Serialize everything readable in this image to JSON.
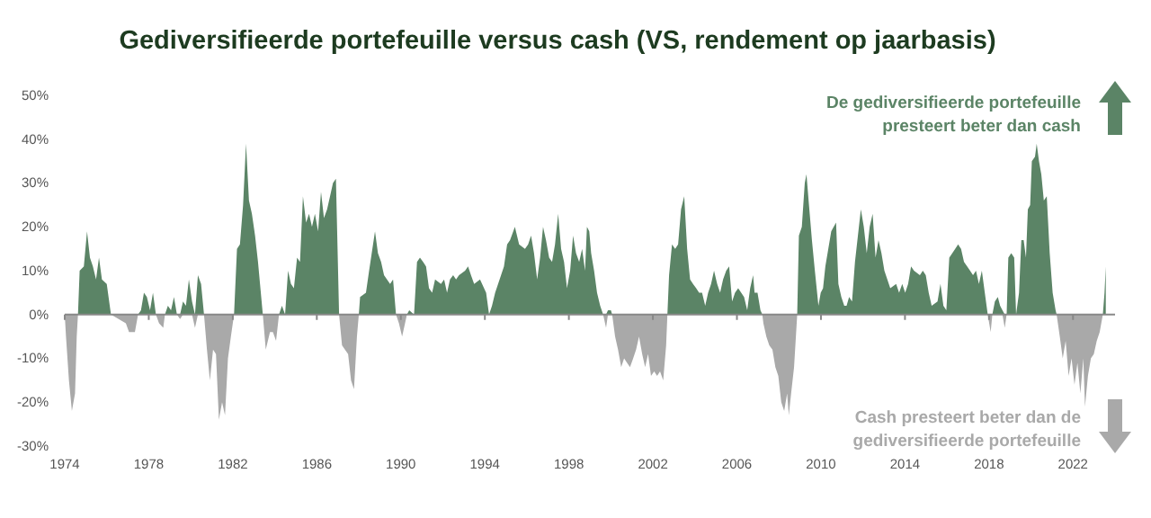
{
  "chart_data": {
    "type": "area",
    "title": "Gediversifieerde portefeuille versus cash (VS, rendement op jaarbasis)",
    "annotations": [
      "De gediversifieerde portefeuille presteert beter dan cash",
      "Cash presteert beter dan de gediversifieerde portefeuille"
    ],
    "x": [
      1974.0,
      1974.06,
      1974.2,
      1974.34,
      1974.49,
      1974.57,
      1974.63,
      1974.71,
      1974.91,
      1975.06,
      1975.2,
      1975.34,
      1975.49,
      1975.63,
      1975.77,
      1976.0,
      1976.2,
      1976.91,
      1977.06,
      1977.34,
      1977.49,
      1977.63,
      1977.77,
      1977.91,
      1978.06,
      1978.2,
      1978.34,
      1978.49,
      1978.69,
      1978.77,
      1978.91,
      1979.06,
      1979.2,
      1979.34,
      1979.49,
      1979.63,
      1979.77,
      1979.91,
      1980.06,
      1980.2,
      1980.34,
      1980.49,
      1980.63,
      1980.77,
      1980.91,
      1981.06,
      1981.2,
      1981.34,
      1981.49,
      1981.63,
      1981.77,
      1981.91,
      1982.06,
      1982.2,
      1982.34,
      1982.49,
      1982.63,
      1982.77,
      1982.91,
      1983.06,
      1983.2,
      1983.43,
      1983.57,
      1983.77,
      1983.91,
      1984.06,
      1984.2,
      1984.34,
      1984.49,
      1984.63,
      1984.77,
      1984.91,
      1985.06,
      1985.2,
      1985.34,
      1985.49,
      1985.63,
      1985.77,
      1985.91,
      1986.06,
      1986.2,
      1986.34,
      1986.49,
      1986.63,
      1986.77,
      1986.91,
      1987.06,
      1987.2,
      1987.34,
      1987.49,
      1987.63,
      1987.77,
      1987.91,
      1988.0,
      1988.06,
      1988.34,
      1988.49,
      1988.77,
      1988.91,
      1989.06,
      1989.2,
      1989.34,
      1989.49,
      1989.63,
      1989.77,
      1989.91,
      1990.06,
      1990.2,
      1990.29,
      1990.4,
      1990.63,
      1990.77,
      1990.91,
      1991.06,
      1991.2,
      1991.34,
      1991.49,
      1991.63,
      1991.91,
      1992.06,
      1992.2,
      1992.34,
      1992.49,
      1992.63,
      1992.77,
      1993.06,
      1993.2,
      1993.34,
      1993.49,
      1993.77,
      1994.06,
      1994.2,
      1994.34,
      1994.49,
      1994.63,
      1994.77,
      1994.91,
      1995.06,
      1995.2,
      1995.43,
      1995.63,
      1995.91,
      1996.06,
      1996.2,
      1996.34,
      1996.49,
      1996.63,
      1996.77,
      1996.91,
      1997.06,
      1997.2,
      1997.34,
      1997.49,
      1997.63,
      1997.77,
      1997.91,
      1998.06,
      1998.2,
      1998.34,
      1998.49,
      1998.63,
      1998.77,
      1998.86,
      1998.97,
      1999.06,
      1999.2,
      1999.34,
      1999.49,
      1999.63,
      1999.77,
      1999.86,
      2000.0,
      2000.06,
      2000.2,
      2000.34,
      2000.49,
      2000.63,
      2000.77,
      2000.91,
      2001.06,
      2001.2,
      2001.34,
      2001.49,
      2001.63,
      2001.77,
      2001.91,
      2002.06,
      2002.2,
      2002.34,
      2002.49,
      2002.63,
      2002.69,
      2002.77,
      2002.91,
      2003.06,
      2003.2,
      2003.34,
      2003.49,
      2003.63,
      2003.77,
      2003.91,
      2004.06,
      2004.2,
      2004.34,
      2004.49,
      2004.63,
      2004.77,
      2004.91,
      2005.06,
      2005.2,
      2005.34,
      2005.49,
      2005.63,
      2005.77,
      2005.91,
      2006.06,
      2006.34,
      2006.49,
      2006.63,
      2006.77,
      2006.84,
      2006.98,
      2007.12,
      2007.21,
      2007.26,
      2007.4,
      2007.54,
      2007.69,
      2007.83,
      2007.97,
      2008.11,
      2008.25,
      2008.39,
      2008.47,
      2008.58,
      2008.72,
      2008.87,
      2008.95,
      2009.09,
      2009.23,
      2009.31,
      2009.43,
      2009.57,
      2009.71,
      2009.88,
      2009.99,
      2010.1,
      2010.21,
      2010.35,
      2010.49,
      2010.72,
      2010.83,
      2010.97,
      2011.11,
      2011.22,
      2011.34,
      2011.48,
      2011.62,
      2011.76,
      2011.9,
      2012.04,
      2012.18,
      2012.32,
      2012.46,
      2012.6,
      2012.74,
      2012.88,
      2013.02,
      2013.16,
      2013.3,
      2013.58,
      2013.72,
      2013.87,
      2014.01,
      2014.15,
      2014.29,
      2014.43,
      2014.71,
      2014.85,
      2014.99,
      2015.13,
      2015.27,
      2015.55,
      2015.69,
      2015.83,
      2015.97,
      2016.11,
      2016.39,
      2016.53,
      2016.67,
      2016.81,
      2016.96,
      2017.1,
      2017.24,
      2017.38,
      2017.52,
      2017.66,
      2017.8,
      2017.94,
      2018.08,
      2018.16,
      2018.28,
      2018.42,
      2018.53,
      2018.64,
      2018.75,
      2018.84,
      2018.92,
      2019.06,
      2019.2,
      2019.29,
      2019.43,
      2019.54,
      2019.65,
      2019.76,
      2019.85,
      2019.96,
      2020.04,
      2020.19,
      2020.27,
      2020.38,
      2020.49,
      2020.61,
      2020.75,
      2020.89,
      2021.03,
      2021.17,
      2021.22,
      2021.37,
      2021.51,
      2021.65,
      2021.79,
      2021.93,
      2022.07,
      2022.21,
      2022.35,
      2022.49,
      2022.57,
      2022.71,
      2022.85,
      2022.99,
      2023.13,
      2023.27,
      2023.42,
      2023.5,
      2023.56
    ],
    "series": [
      {
        "color": "#5b8466",
        "values": [
          0,
          0,
          0,
          0,
          0,
          0,
          0,
          10,
          11,
          19,
          13,
          11,
          8,
          13,
          8,
          7,
          0,
          0,
          0,
          0,
          0,
          1,
          5,
          4,
          1,
          5,
          0,
          0,
          0,
          0,
          2,
          1,
          4,
          0,
          0,
          3,
          2,
          8,
          3,
          0,
          9,
          7,
          0,
          0,
          0,
          0,
          0,
          0,
          0,
          0,
          0,
          0,
          0,
          15,
          16,
          25,
          39,
          26,
          23,
          18,
          12,
          0,
          0,
          0,
          0,
          0,
          0,
          2,
          0,
          10,
          7,
          6,
          13,
          12,
          27,
          21,
          23,
          20,
          23,
          19,
          28,
          22,
          24,
          27,
          30,
          31,
          0,
          0,
          0,
          0,
          0,
          0,
          0,
          0,
          4,
          5,
          10,
          19,
          14,
          12,
          9,
          8,
          7,
          8,
          0,
          0,
          0,
          0,
          0,
          1,
          0,
          12,
          13,
          12,
          11,
          6,
          5,
          8,
          7,
          8,
          5,
          8,
          9,
          8,
          9,
          10,
          11,
          9,
          7,
          8,
          5,
          0,
          2,
          5,
          7,
          9,
          11,
          16,
          17,
          20,
          16,
          15,
          16,
          18,
          14,
          8,
          13,
          20,
          17,
          13,
          12,
          16,
          23,
          15,
          12,
          6,
          10,
          18,
          14,
          12,
          15,
          10,
          20,
          19,
          14,
          10,
          5,
          2,
          0,
          0,
          1,
          1,
          0,
          0,
          0,
          0,
          0,
          0,
          0,
          0,
          0,
          0,
          0,
          0,
          0,
          0,
          0,
          0,
          0,
          0,
          0,
          0,
          9,
          16,
          15,
          16,
          24,
          27,
          15,
          8,
          7,
          6,
          5,
          5,
          2,
          5,
          7,
          10,
          7,
          5,
          8,
          10,
          11,
          3,
          5,
          6,
          4,
          1,
          6,
          9,
          5,
          5,
          1,
          0,
          0,
          0,
          0,
          0,
          0,
          0,
          0,
          0,
          0,
          0,
          0,
          0,
          0,
          18,
          20,
          30,
          32,
          25,
          17,
          10,
          2,
          5,
          6,
          11,
          15,
          19,
          21,
          7,
          4,
          2,
          2,
          4,
          3,
          12,
          18,
          24,
          20,
          14,
          20,
          23,
          13,
          17,
          14,
          10,
          8,
          6,
          7,
          5,
          7,
          5,
          7,
          11,
          10,
          9,
          10,
          9,
          5,
          2,
          3,
          7,
          2,
          1,
          13,
          15,
          16,
          15,
          12,
          11,
          10,
          9,
          10,
          7,
          10,
          5,
          0,
          0,
          0,
          3,
          4,
          2,
          1,
          0,
          0,
          13,
          14,
          13,
          0,
          5,
          17,
          17,
          13,
          24,
          25,
          35,
          36,
          39,
          35,
          32,
          26,
          27,
          14,
          5,
          1,
          0,
          0,
          0,
          0,
          0,
          0,
          0,
          0,
          0,
          0,
          0,
          0,
          0,
          0,
          0,
          0,
          0,
          5,
          11
        ]
      },
      {
        "color": "#a9a9a9",
        "values": [
          0,
          -5,
          -15,
          -22,
          -18,
          -5,
          0,
          0,
          0,
          0,
          0,
          0,
          0,
          0,
          0,
          0,
          0,
          -2,
          -4,
          -4,
          0,
          0,
          0,
          0,
          0,
          0,
          0,
          -2,
          -3,
          0,
          0,
          0,
          0,
          0,
          -1,
          0,
          0,
          0,
          0,
          -3,
          0,
          0,
          0,
          -8,
          -15,
          -8,
          -9,
          -24,
          -20,
          -23,
          -10,
          -5,
          0,
          0,
          0,
          0,
          0,
          0,
          0,
          0,
          0,
          0,
          -8,
          -4,
          -4,
          -6,
          0,
          0,
          0,
          0,
          0,
          0,
          0,
          0,
          0,
          0,
          0,
          0,
          0,
          0,
          0,
          0,
          0,
          0,
          0,
          0,
          0,
          -7,
          -8,
          -9,
          -15,
          -17,
          -5,
          0,
          0,
          0,
          0,
          0,
          0,
          0,
          0,
          0,
          0,
          0,
          0,
          -2,
          -5,
          -2,
          0,
          0,
          0,
          0,
          0,
          0,
          0,
          0,
          0,
          0,
          0,
          0,
          0,
          0,
          0,
          0,
          0,
          0,
          0,
          0,
          0,
          0,
          0,
          0,
          0,
          0,
          0,
          0,
          0,
          0,
          0,
          0,
          0,
          0,
          0,
          0,
          0,
          0,
          0,
          0,
          0,
          0,
          0,
          0,
          0,
          0,
          0,
          0,
          0,
          0,
          0,
          0,
          0,
          0,
          0,
          0,
          0,
          0,
          0,
          0,
          0,
          -3,
          0,
          0,
          0,
          -5,
          -8,
          -12,
          -10,
          -11,
          -12,
          -10,
          -8,
          -5,
          -9,
          -12,
          -9,
          -14,
          -13,
          -14,
          -13,
          -15,
          -7,
          0,
          0,
          0,
          0,
          0,
          0,
          0,
          0,
          0,
          0,
          0,
          0,
          0,
          0,
          0,
          0,
          0,
          0,
          0,
          0,
          0,
          0,
          0,
          0,
          0,
          0,
          0,
          0,
          0,
          0,
          0,
          0,
          0,
          -2,
          -5,
          -7,
          -8,
          -12,
          -14,
          -20,
          -22,
          -18,
          -23,
          -18,
          -12,
          0,
          0,
          0,
          0,
          0,
          0,
          0,
          0,
          0,
          0,
          0,
          0,
          0,
          0,
          0,
          0,
          0,
          0,
          0,
          0,
          0,
          0,
          0,
          0,
          0,
          0,
          0,
          0,
          0,
          0,
          0,
          0,
          0,
          0,
          0,
          0,
          0,
          0,
          0,
          0,
          0,
          0,
          0,
          0,
          0,
          0,
          0,
          0,
          0,
          0,
          0,
          0,
          0,
          0,
          0,
          0,
          0,
          0,
          0,
          0,
          0,
          0,
          0,
          -4,
          0,
          0,
          0,
          0,
          0,
          -3,
          0,
          0,
          0,
          0,
          0,
          0,
          0,
          0,
          0,
          0,
          0,
          0,
          0,
          0,
          0,
          0,
          0,
          0,
          0,
          0,
          0,
          0,
          -5,
          -10,
          -6,
          -14,
          -10,
          -16,
          -11,
          -18,
          -10,
          -21,
          -14,
          -10,
          -9,
          -6,
          -4,
          0,
          0,
          0
        ]
      }
    ],
    "xlim": [
      1974,
      2024
    ],
    "xticks": [
      1974,
      1978,
      1982,
      1986,
      1990,
      1994,
      1998,
      2002,
      2006,
      2010,
      2014,
      2018,
      2022
    ],
    "ylim": [
      -30,
      50
    ],
    "yticks": [
      {
        "value": -30,
        "label": "-30%"
      },
      {
        "value": -20,
        "label": "-20%"
      },
      {
        "value": -10,
        "label": "-10%"
      },
      {
        "value": 0,
        "label": "0%"
      },
      {
        "value": 10,
        "label": "10%"
      },
      {
        "value": 20,
        "label": "20%"
      },
      {
        "value": 30,
        "label": "30%"
      },
      {
        "value": 40,
        "label": "40%"
      },
      {
        "value": 50,
        "label": "50%"
      }
    ]
  }
}
